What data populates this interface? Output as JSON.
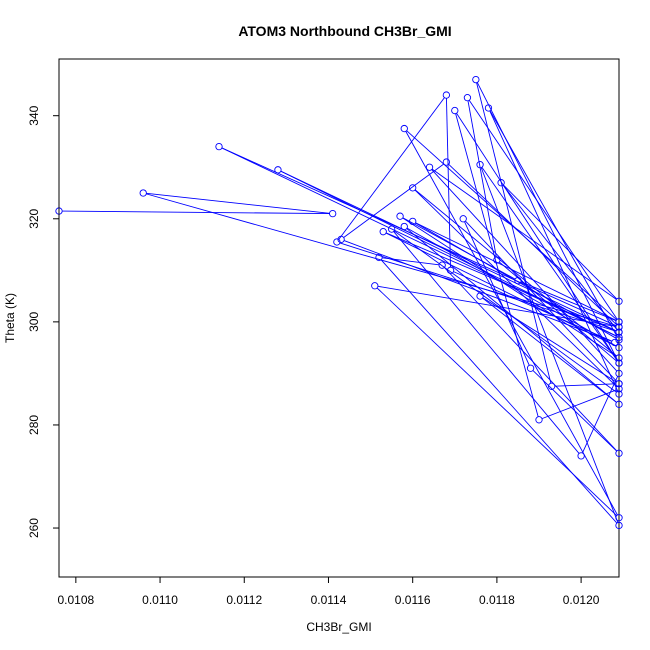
{
  "chart_data": {
    "type": "line",
    "title": "ATOM3 Northbound CH3Br_GMI",
    "xlabel": "CH3Br_GMI",
    "ylabel": "Theta (K)",
    "xlim": [
      0.01076,
      0.01209
    ],
    "ylim": [
      250.5,
      351.0
    ],
    "xticks": [
      0.0108,
      0.011,
      0.0112,
      0.0114,
      0.0116,
      0.0118,
      0.012
    ],
    "xtick_labels": [
      "0.0108",
      "0.0110",
      "0.0112",
      "0.0114",
      "0.0116",
      "0.0118",
      "0.0120"
    ],
    "yticks": [
      260,
      280,
      300,
      320,
      340
    ],
    "ytick_labels": [
      "260",
      "280",
      "300",
      "320",
      "340"
    ],
    "grid": false,
    "series": [
      {
        "color": "#0000ff",
        "marker": "open-circle",
        "x": [
          0.01076,
          0.01141,
          0.01096,
          0.01209,
          0.01114,
          0.01209,
          0.01128,
          0.01209,
          0.01142,
          0.01168,
          0.01169,
          0.01208,
          0.01143,
          0.01168,
          0.01209,
          0.01151,
          0.01209,
          0.01158,
          0.01209,
          0.01173,
          0.0118,
          0.01209,
          0.01175,
          0.01193,
          0.01209,
          0.01172,
          0.01188,
          0.01209,
          0.01167,
          0.01152,
          0.01209,
          0.01176,
          0.01209,
          0.0117,
          0.0119,
          0.01209,
          0.0116,
          0.01209,
          0.01157,
          0.01185,
          0.01209,
          0.0116,
          0.01209,
          0.01178,
          0.01209,
          0.01155,
          0.012,
          0.01209,
          0.01164,
          0.01209,
          0.01181,
          0.01209,
          0.01153,
          0.01209,
          0.01158,
          0.01209,
          0.01176,
          0.01209
        ],
        "y": [
          321.5,
          321.0,
          325.0,
          299.0,
          334.0,
          297.0,
          329.5,
          298.0,
          315.5,
          344.0,
          310.0,
          296.0,
          316.0,
          331.0,
          299.0,
          307.0,
          262.0,
          337.5,
          300.0,
          343.5,
          312.0,
          292.0,
          347.0,
          287.5,
          288.0,
          320.0,
          291.0,
          274.5,
          311.0,
          312.5,
          260.5,
          330.5,
          292.0,
          341.0,
          281.0,
          287.0,
          326.0,
          293.0,
          320.5,
          308.0,
          300.0,
          319.5,
          296.5,
          341.5,
          286.0,
          318.0,
          274.0,
          290.0,
          330.0,
          304.0,
          327.0,
          298.0,
          317.5,
          295.0,
          318.5,
          284.0,
          305.0,
          288.0
        ]
      }
    ]
  }
}
